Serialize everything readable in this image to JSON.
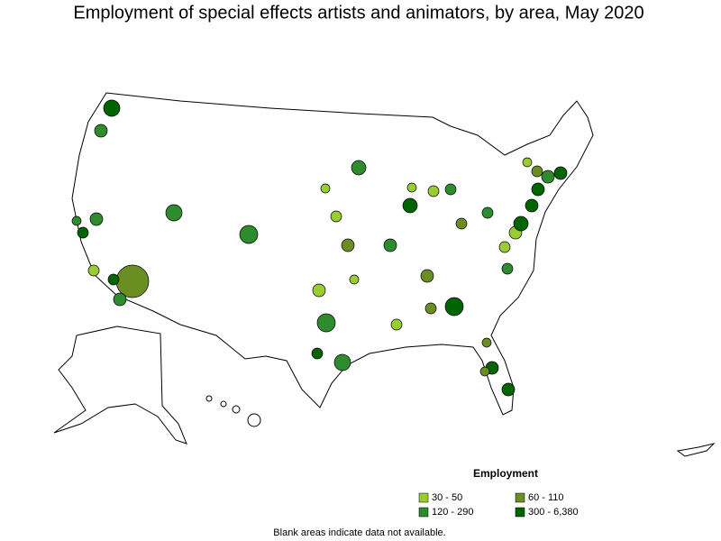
{
  "title": "Employment of special effects artists and animators, by area, May 2020",
  "legend": {
    "title": "Employment",
    "items": [
      {
        "label": "30 - 50",
        "color": "#9acd32"
      },
      {
        "label": "60 - 110",
        "color": "#6b8e23"
      },
      {
        "label": "120 - 290",
        "color": "#2e8b2e"
      },
      {
        "label": "300 - 6,380",
        "color": "#006400"
      }
    ]
  },
  "note": "Blank areas indicate data not available."
}
